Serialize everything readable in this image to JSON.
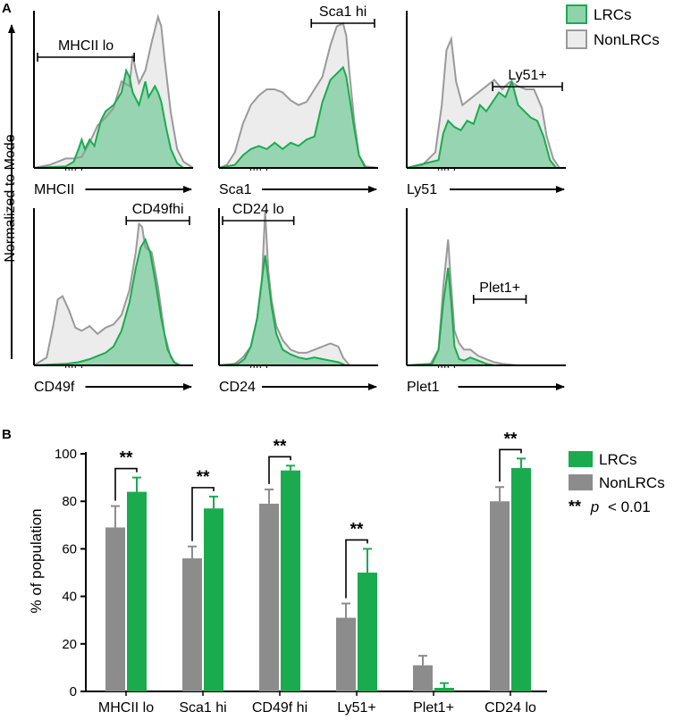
{
  "panel_a": {
    "label": "A",
    "ylabel": "Normalized to Mode",
    "legend": [
      {
        "label": "LRCs",
        "fill": "#8fd3ad",
        "stroke": "#1aab4f"
      },
      {
        "label": "NonLRCs",
        "fill": "#ececec",
        "stroke": "#9a9a9a"
      }
    ],
    "histograms": [
      {
        "marker": "MHCII",
        "gate": "MHCII lo",
        "gate_range": [
          0.0,
          0.63
        ],
        "grey": [
          [
            0,
            0
          ],
          [
            0.05,
            0.01
          ],
          [
            0.1,
            0.02
          ],
          [
            0.15,
            0.04
          ],
          [
            0.2,
            0.06
          ],
          [
            0.25,
            0.06
          ],
          [
            0.3,
            0.07
          ],
          [
            0.35,
            0.16
          ],
          [
            0.4,
            0.27
          ],
          [
            0.45,
            0.32
          ],
          [
            0.5,
            0.38
          ],
          [
            0.55,
            0.55
          ],
          [
            0.6,
            0.52
          ],
          [
            0.62,
            0.72
          ],
          [
            0.64,
            0.62
          ],
          [
            0.66,
            0.54
          ],
          [
            0.7,
            0.62
          ],
          [
            0.74,
            0.8
          ],
          [
            0.78,
            0.96
          ],
          [
            0.8,
            0.9
          ],
          [
            0.82,
            0.7
          ],
          [
            0.86,
            0.35
          ],
          [
            0.9,
            0.12
          ],
          [
            0.94,
            0.04
          ],
          [
            1,
            0
          ]
        ],
        "green": [
          [
            0,
            0
          ],
          [
            0.2,
            0.01
          ],
          [
            0.25,
            0.04
          ],
          [
            0.28,
            0.12
          ],
          [
            0.3,
            0.18
          ],
          [
            0.32,
            0.12
          ],
          [
            0.35,
            0.18
          ],
          [
            0.38,
            0.14
          ],
          [
            0.42,
            0.3
          ],
          [
            0.45,
            0.36
          ],
          [
            0.5,
            0.4
          ],
          [
            0.55,
            0.48
          ],
          [
            0.58,
            0.62
          ],
          [
            0.6,
            0.58
          ],
          [
            0.62,
            0.48
          ],
          [
            0.66,
            0.4
          ],
          [
            0.7,
            0.55
          ],
          [
            0.72,
            0.45
          ],
          [
            0.76,
            0.52
          ],
          [
            0.78,
            0.48
          ],
          [
            0.8,
            0.42
          ],
          [
            0.83,
            0.26
          ],
          [
            0.86,
            0.12
          ],
          [
            0.9,
            0.03
          ],
          [
            0.94,
            0
          ]
        ]
      },
      {
        "marker": "Sca1",
        "gate": "Sca1 hi",
        "gate_range": [
          0.58,
          1.0
        ],
        "grey": [
          [
            0,
            0
          ],
          [
            0.05,
            0.02
          ],
          [
            0.1,
            0.1
          ],
          [
            0.15,
            0.28
          ],
          [
            0.2,
            0.4
          ],
          [
            0.25,
            0.46
          ],
          [
            0.3,
            0.5
          ],
          [
            0.35,
            0.5
          ],
          [
            0.4,
            0.48
          ],
          [
            0.45,
            0.43
          ],
          [
            0.5,
            0.4
          ],
          [
            0.55,
            0.42
          ],
          [
            0.6,
            0.5
          ],
          [
            0.65,
            0.58
          ],
          [
            0.7,
            0.78
          ],
          [
            0.74,
            0.9
          ],
          [
            0.78,
            0.92
          ],
          [
            0.8,
            0.84
          ],
          [
            0.82,
            0.6
          ],
          [
            0.85,
            0.3
          ],
          [
            0.88,
            0.08
          ],
          [
            0.92,
            0.01
          ],
          [
            1,
            0
          ]
        ],
        "green": [
          [
            0,
            0
          ],
          [
            0.1,
            0.02
          ],
          [
            0.15,
            0.08
          ],
          [
            0.2,
            0.12
          ],
          [
            0.25,
            0.14
          ],
          [
            0.3,
            0.12
          ],
          [
            0.35,
            0.16
          ],
          [
            0.4,
            0.12
          ],
          [
            0.45,
            0.16
          ],
          [
            0.5,
            0.14
          ],
          [
            0.55,
            0.18
          ],
          [
            0.6,
            0.2
          ],
          [
            0.65,
            0.42
          ],
          [
            0.7,
            0.56
          ],
          [
            0.74,
            0.6
          ],
          [
            0.78,
            0.64
          ],
          [
            0.8,
            0.58
          ],
          [
            0.82,
            0.45
          ],
          [
            0.85,
            0.25
          ],
          [
            0.88,
            0.08
          ],
          [
            0.92,
            0
          ]
        ]
      },
      {
        "marker": "Ly51",
        "gate": "Ly51+",
        "gate_range": [
          0.54,
          1.0
        ],
        "grey": [
          [
            0,
            0
          ],
          [
            0.1,
            0.02
          ],
          [
            0.18,
            0.1
          ],
          [
            0.22,
            0.4
          ],
          [
            0.25,
            0.75
          ],
          [
            0.28,
            0.82
          ],
          [
            0.31,
            0.55
          ],
          [
            0.35,
            0.4
          ],
          [
            0.4,
            0.44
          ],
          [
            0.45,
            0.48
          ],
          [
            0.5,
            0.52
          ],
          [
            0.55,
            0.56
          ],
          [
            0.6,
            0.5
          ],
          [
            0.65,
            0.55
          ],
          [
            0.7,
            0.52
          ],
          [
            0.75,
            0.5
          ],
          [
            0.8,
            0.5
          ],
          [
            0.85,
            0.38
          ],
          [
            0.88,
            0.2
          ],
          [
            0.92,
            0.06
          ],
          [
            0.96,
            0
          ]
        ],
        "green": [
          [
            0,
            0
          ],
          [
            0.2,
            0.05
          ],
          [
            0.23,
            0.22
          ],
          [
            0.26,
            0.3
          ],
          [
            0.3,
            0.26
          ],
          [
            0.34,
            0.24
          ],
          [
            0.38,
            0.3
          ],
          [
            0.42,
            0.28
          ],
          [
            0.46,
            0.4
          ],
          [
            0.5,
            0.36
          ],
          [
            0.54,
            0.42
          ],
          [
            0.58,
            0.48
          ],
          [
            0.62,
            0.45
          ],
          [
            0.66,
            0.55
          ],
          [
            0.7,
            0.4
          ],
          [
            0.74,
            0.36
          ],
          [
            0.78,
            0.32
          ],
          [
            0.82,
            0.3
          ],
          [
            0.86,
            0.2
          ],
          [
            0.9,
            0.05
          ],
          [
            0.94,
            0
          ]
        ]
      },
      {
        "marker": "CD49f",
        "gate": "CD49fhi",
        "gate_range": [
          0.58,
          1.0
        ],
        "grey": [
          [
            0,
            0
          ],
          [
            0.08,
            0.05
          ],
          [
            0.12,
            0.25
          ],
          [
            0.15,
            0.42
          ],
          [
            0.18,
            0.44
          ],
          [
            0.22,
            0.35
          ],
          [
            0.26,
            0.24
          ],
          [
            0.3,
            0.22
          ],
          [
            0.35,
            0.25
          ],
          [
            0.4,
            0.2
          ],
          [
            0.45,
            0.24
          ],
          [
            0.5,
            0.26
          ],
          [
            0.55,
            0.32
          ],
          [
            0.6,
            0.48
          ],
          [
            0.62,
            0.6
          ],
          [
            0.64,
            0.72
          ],
          [
            0.66,
            0.9
          ],
          [
            0.68,
            0.88
          ],
          [
            0.7,
            0.75
          ],
          [
            0.74,
            0.72
          ],
          [
            0.78,
            0.5
          ],
          [
            0.82,
            0.2
          ],
          [
            0.86,
            0.05
          ],
          [
            0.9,
            0
          ]
        ],
        "green": [
          [
            0,
            0
          ],
          [
            0.2,
            0.01
          ],
          [
            0.28,
            0.02
          ],
          [
            0.35,
            0.04
          ],
          [
            0.4,
            0.06
          ],
          [
            0.45,
            0.08
          ],
          [
            0.5,
            0.12
          ],
          [
            0.55,
            0.22
          ],
          [
            0.6,
            0.4
          ],
          [
            0.64,
            0.62
          ],
          [
            0.67,
            0.75
          ],
          [
            0.7,
            0.8
          ],
          [
            0.73,
            0.72
          ],
          [
            0.76,
            0.55
          ],
          [
            0.8,
            0.3
          ],
          [
            0.84,
            0.1
          ],
          [
            0.88,
            0.02
          ],
          [
            0.92,
            0
          ]
        ]
      },
      {
        "marker": "CD24",
        "gate": "CD24 lo",
        "gate_range": [
          0.0,
          0.47
        ],
        "grey": [
          [
            0,
            0
          ],
          [
            0.1,
            0.01
          ],
          [
            0.15,
            0.05
          ],
          [
            0.2,
            0.12
          ],
          [
            0.24,
            0.3
          ],
          [
            0.27,
            0.55
          ],
          [
            0.29,
            0.98
          ],
          [
            0.31,
            0.6
          ],
          [
            0.33,
            0.42
          ],
          [
            0.36,
            0.25
          ],
          [
            0.4,
            0.16
          ],
          [
            0.45,
            0.1
          ],
          [
            0.5,
            0.08
          ],
          [
            0.55,
            0.08
          ],
          [
            0.6,
            0.1
          ],
          [
            0.65,
            0.12
          ],
          [
            0.7,
            0.14
          ],
          [
            0.75,
            0.12
          ],
          [
            0.78,
            0.05
          ],
          [
            0.82,
            0
          ]
        ],
        "green": [
          [
            0,
            0
          ],
          [
            0.12,
            0.01
          ],
          [
            0.16,
            0.04
          ],
          [
            0.2,
            0.12
          ],
          [
            0.24,
            0.3
          ],
          [
            0.27,
            0.55
          ],
          [
            0.29,
            0.7
          ],
          [
            0.31,
            0.55
          ],
          [
            0.33,
            0.38
          ],
          [
            0.36,
            0.2
          ],
          [
            0.4,
            0.1
          ],
          [
            0.45,
            0.07
          ],
          [
            0.5,
            0.05
          ],
          [
            0.55,
            0.04
          ],
          [
            0.6,
            0.05
          ],
          [
            0.65,
            0.04
          ],
          [
            0.7,
            0.03
          ],
          [
            0.75,
            0.02
          ],
          [
            0.8,
            0
          ]
        ]
      },
      {
        "marker": "Plet1",
        "gate": "Plet1+",
        "gate_range": [
          0.42,
          0.75
        ],
        "grey": [
          [
            0,
            0
          ],
          [
            0.15,
            0.01
          ],
          [
            0.2,
            0.1
          ],
          [
            0.23,
            0.5
          ],
          [
            0.26,
            0.8
          ],
          [
            0.28,
            0.5
          ],
          [
            0.3,
            0.22
          ],
          [
            0.33,
            0.14
          ],
          [
            0.36,
            0.1
          ],
          [
            0.4,
            0.1
          ],
          [
            0.45,
            0.06
          ],
          [
            0.5,
            0.04
          ],
          [
            0.55,
            0.02
          ],
          [
            0.6,
            0.01
          ],
          [
            0.7,
            0
          ]
        ],
        "green": [
          [
            0,
            0
          ],
          [
            0.16,
            0.01
          ],
          [
            0.2,
            0.1
          ],
          [
            0.23,
            0.4
          ],
          [
            0.26,
            0.62
          ],
          [
            0.28,
            0.4
          ],
          [
            0.3,
            0.12
          ],
          [
            0.33,
            0.04
          ],
          [
            0.36,
            0.03
          ],
          [
            0.4,
            0.05
          ],
          [
            0.45,
            0.03
          ],
          [
            0.5,
            0.01
          ],
          [
            0.55,
            0
          ]
        ]
      }
    ]
  },
  "panel_b": {
    "label": "B",
    "legend": {
      "lrcs_label": "LRCs",
      "nonlrcs_label": "NonLRCs",
      "sig_stars": "**",
      "sig_text": "p",
      "sig_text2": "< 0.01"
    }
  },
  "chart_data": {
    "type": "bar",
    "title": "",
    "xlabel": "",
    "ylabel": "% of population",
    "ylim": [
      0,
      100
    ],
    "yticks": [
      0,
      20,
      40,
      60,
      80,
      100
    ],
    "categories": [
      "MHCII lo",
      "Sca1 hi",
      "CD49f hi",
      "Ly51+",
      "Plet1+",
      "CD24 lo"
    ],
    "series": [
      {
        "name": "NonLRCs",
        "color": "#8c8c8c",
        "values": [
          69,
          56,
          79,
          31,
          11,
          80
        ],
        "errors": [
          9,
          5,
          6,
          6,
          4,
          6
        ]
      },
      {
        "name": "LRCs",
        "color": "#1aab4f",
        "values": [
          84,
          77,
          93,
          50,
          1.5,
          94
        ],
        "errors": [
          6,
          5,
          2,
          10,
          2,
          4
        ]
      }
    ],
    "significance": [
      {
        "category": "MHCII lo",
        "label": "**"
      },
      {
        "category": "Sca1 hi",
        "label": "**"
      },
      {
        "category": "CD49f hi",
        "label": "**"
      },
      {
        "category": "Ly51+",
        "label": "**"
      },
      {
        "category": "CD24 lo",
        "label": "**"
      }
    ],
    "significance_legend": "** p < 0.01"
  }
}
